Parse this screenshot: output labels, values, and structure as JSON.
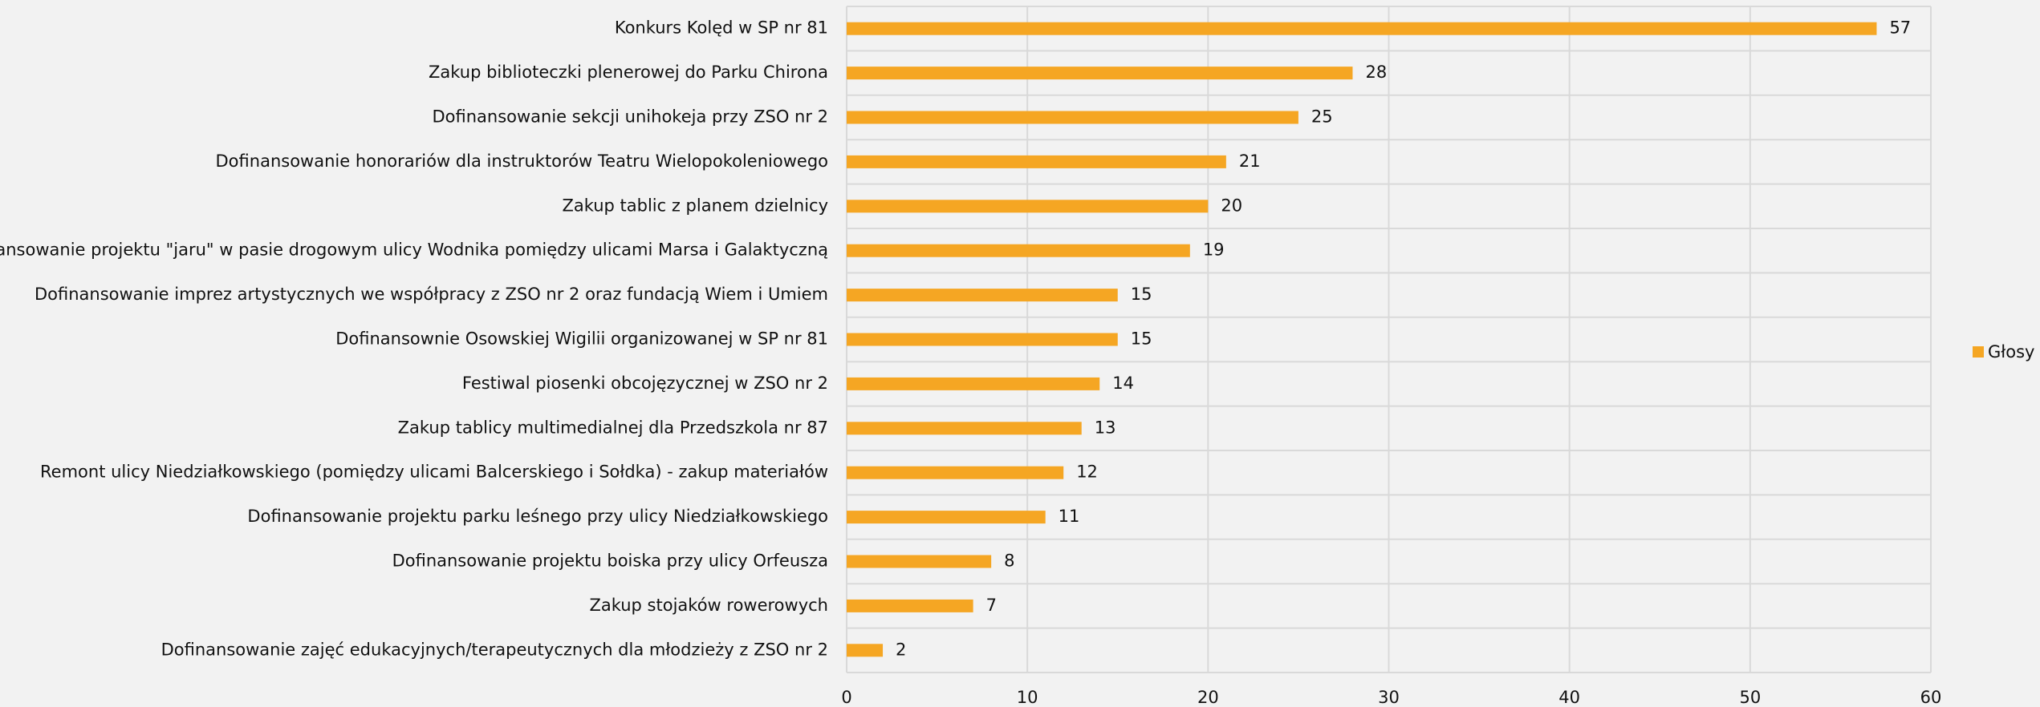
{
  "chart_data": {
    "type": "bar",
    "orientation": "horizontal",
    "categories": [
      "Konkurs Kolęd w SP nr 81",
      "Zakup biblioteczki plenerowej do Parku Chirona",
      "Dofinansowanie sekcji unihokeja przy ZSO nr 2",
      "Dofinansowanie honorariów dla instruktorów Teatru Wielopokoleniowego",
      "Zakup tablic z planem dzielnicy",
      "Dofinansowanie projektu \"jaru\" w pasie drogowym ulicy Wodnika pomiędzy ulicami Marsa i Galaktyczną",
      "Dofinansowanie imprez artystycznych we współpracy z ZSO nr 2 oraz fundacją Wiem i Umiem",
      "Dofinansownie Osowskiej Wigilii organizowanej w SP nr 81",
      "Festiwal piosenki obcojęzycznej w ZSO nr 2",
      "Zakup tablicy multimedialnej dla Przedszkola nr 87",
      "Remont ulicy Niedziałkowskiego (pomiędzy ulicami Balcerskiego i Sołdka) - zakup materiałów",
      "Dofinansowanie projektu parku leśnego przy ulicy Niedziałkowskiego",
      "Dofinansowanie projektu boiska przy ulicy Orfeusza",
      "Zakup stojaków rowerowych",
      "Dofinansowanie zajęć edukacyjnych/terapeutycznych dla młodzieży z ZSO nr 2"
    ],
    "series": [
      {
        "name": "Głosy",
        "color": "#f5a623",
        "values": [
          57,
          28,
          25,
          21,
          20,
          19,
          15,
          15,
          14,
          13,
          12,
          11,
          8,
          7,
          2
        ]
      }
    ],
    "xlim": [
      0,
      60
    ],
    "xticks": [
      0,
      10,
      20,
      30,
      40,
      50,
      60
    ],
    "grid": true,
    "legend": "right"
  }
}
